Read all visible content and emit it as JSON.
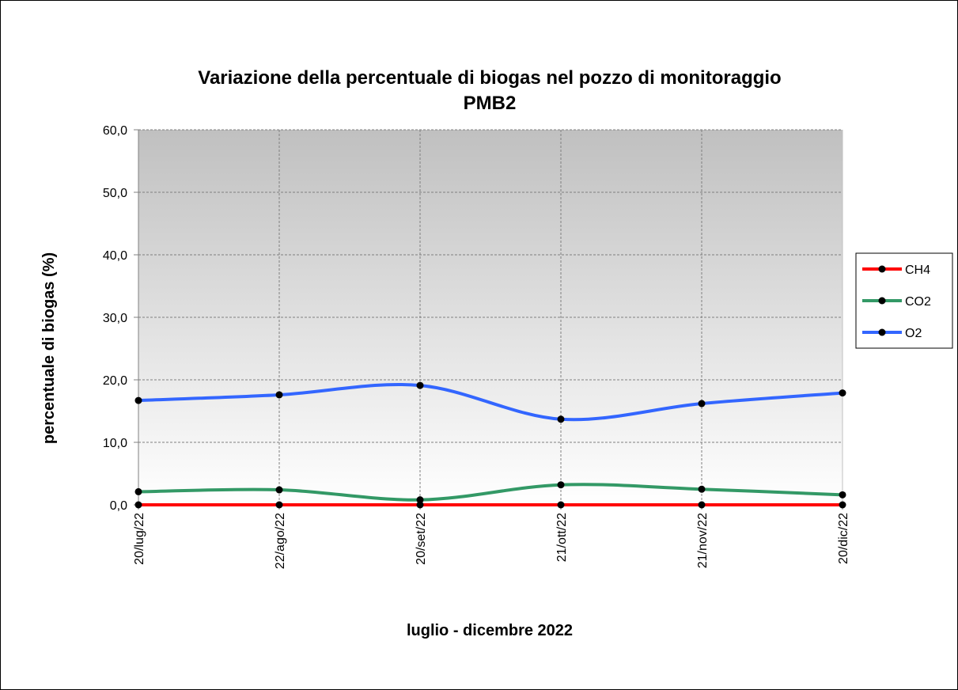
{
  "chart_data": {
    "type": "line",
    "title": [
      "Variazione della percentuale di biogas nel pozzo di monitoraggio",
      "PMB2"
    ],
    "x_label": "luglio  - dicembre 2022",
    "y_label": "percentuale di biogas (%)",
    "categories": [
      "20/lug/22",
      "22/ago/22",
      "20/set/22",
      "21/ott/22",
      "21/nov/22",
      "20/dic/22"
    ],
    "series": [
      {
        "name": "CH4",
        "color": "#ff0000",
        "values": [
          0,
          0,
          0,
          0,
          0,
          0
        ]
      },
      {
        "name": "CO2",
        "color": "#339966",
        "values": [
          2.1,
          2.4,
          0.8,
          3.2,
          2.5,
          1.6
        ]
      },
      {
        "name": "O2",
        "color": "#3366ff",
        "values": [
          16.7,
          17.6,
          19.1,
          13.7,
          16.2,
          17.9
        ]
      }
    ],
    "ylim": [
      0,
      60
    ],
    "yticks": [
      {
        "value": 0,
        "label": "0,0"
      },
      {
        "value": 10,
        "label": "10,0"
      },
      {
        "value": 20,
        "label": "20,0"
      },
      {
        "value": 30,
        "label": "30,0"
      },
      {
        "value": 40,
        "label": "40,0"
      },
      {
        "value": 50,
        "label": "50,0"
      },
      {
        "value": 60,
        "label": "60,0"
      }
    ],
    "grid": true,
    "smooth": true,
    "legend": "right",
    "marker_color": "#000000"
  }
}
